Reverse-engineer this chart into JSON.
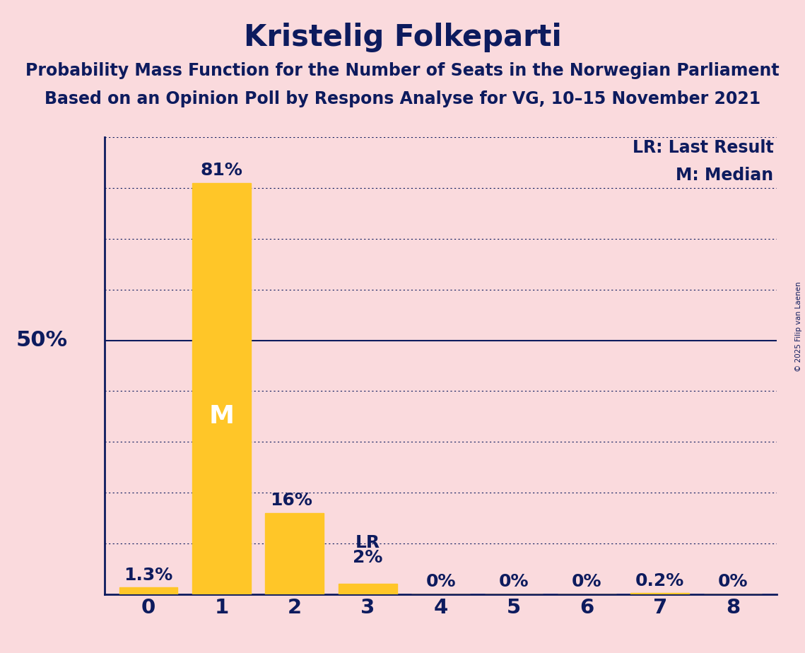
{
  "title": "Kristelig Folkeparti",
  "subtitle1": "Probability Mass Function for the Number of Seats in the Norwegian Parliament",
  "subtitle2": "Based on an Opinion Poll by Respons Analyse for VG, 10–15 November 2021",
  "copyright": "© 2025 Filip van Laenen",
  "categories": [
    0,
    1,
    2,
    3,
    4,
    5,
    6,
    7,
    8
  ],
  "values": [
    1.3,
    81.0,
    16.0,
    2.0,
    0.0,
    0.0,
    0.0,
    0.2,
    0.0
  ],
  "bar_color": "#FFC628",
  "background_color": "#FADADD",
  "text_color": "#0D1B5E",
  "bar_labels": [
    "1.3%",
    "81%",
    "16%",
    "2%",
    "0%",
    "0%",
    "0%",
    "0.2%",
    "0%"
  ],
  "median_bar": 1,
  "lr_bar": 3,
  "fifty_pct_line": 50.0,
  "ylim": [
    0,
    90
  ],
  "grid_levels": [
    10,
    20,
    30,
    40,
    50,
    60,
    70,
    80,
    90
  ],
  "ylabel_50": "50%",
  "legend_lr": "LR: Last Result",
  "legend_m": "M: Median",
  "title_fontsize": 30,
  "subtitle_fontsize": 17,
  "bar_label_fontsize": 18,
  "axis_label_fontsize": 22,
  "legend_fontsize": 17,
  "tick_fontsize": 21,
  "M_fontsize": 26
}
